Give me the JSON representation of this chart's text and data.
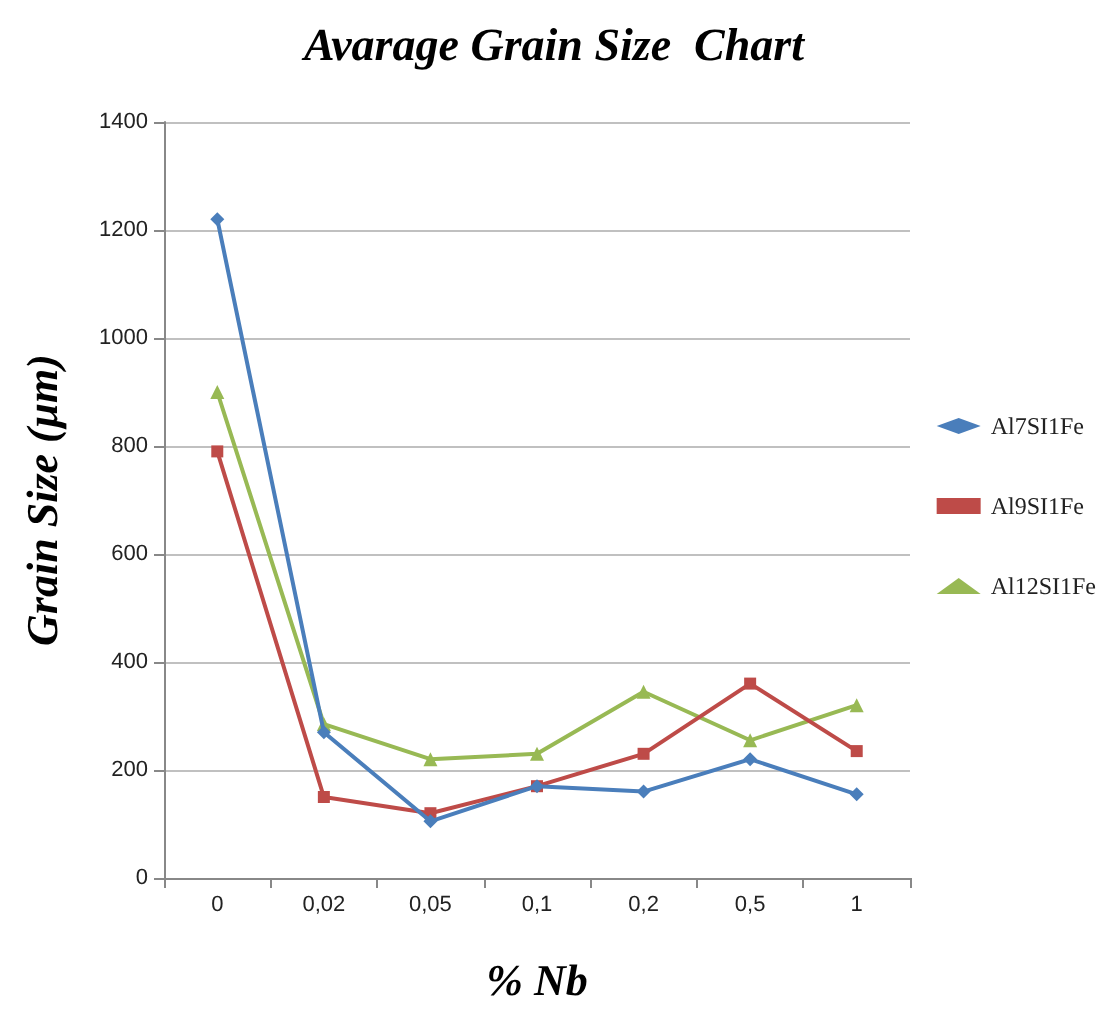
{
  "chart_data": {
    "type": "line",
    "title": "Avarage Grain Size  Chart",
    "xlabel": "% Nb",
    "ylabel": "Grain Size (µm)",
    "categories": [
      "0",
      "0,02",
      "0,05",
      "0,1",
      "0,2",
      "0,5",
      "1"
    ],
    "series": [
      {
        "name": "Al7SI1Fe",
        "color": "#4a7ebb",
        "marker": "diamond",
        "values": [
          1220,
          270,
          105,
          170,
          160,
          220,
          155
        ]
      },
      {
        "name": "Al9SI1Fe",
        "color": "#be4b48",
        "marker": "square",
        "values": [
          790,
          150,
          120,
          170,
          230,
          360,
          235
        ]
      },
      {
        "name": "Al12SI1Fe",
        "color": "#98b954",
        "marker": "triangle",
        "values": [
          900,
          285,
          220,
          230,
          345,
          255,
          320
        ]
      }
    ],
    "ylim": [
      0,
      1400
    ],
    "yticks": [
      0,
      200,
      400,
      600,
      800,
      1000,
      1200,
      1400
    ],
    "grid": "y",
    "legend": "right",
    "line_style": "solid"
  }
}
